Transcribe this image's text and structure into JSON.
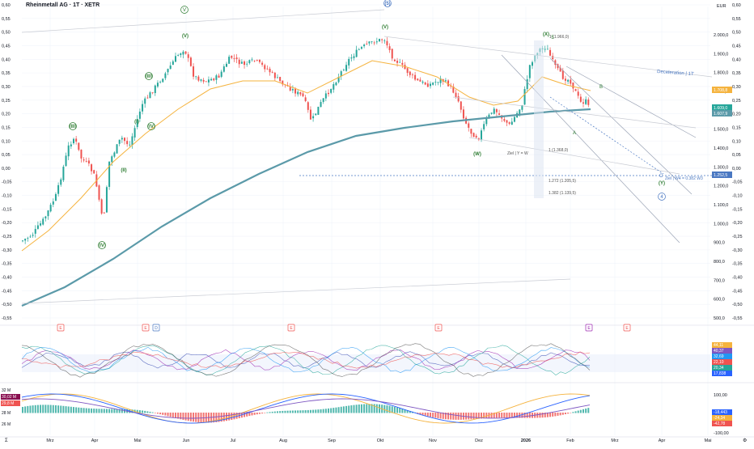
{
  "header": {
    "title": "Rheinmetall AG · 1T · XETR",
    "currency": "EUR"
  },
  "colors": {
    "up": "#26a69a",
    "down": "#ef5350",
    "ma_slow": "#5b9aa9",
    "ma_fast": "#f5b33e",
    "wave": "#2e7d32",
    "blue": "#4a78c2",
    "grid": "#f0f3fa",
    "text": "#131722"
  },
  "chart_data": {
    "type": "candlestick",
    "x_ticks": [
      "Mrz",
      "Apr",
      "Mai",
      "Jun",
      "Jul",
      "Aug",
      "Sep",
      "Okt",
      "Nov",
      "Dez",
      "2026",
      "Feb",
      "Mrz",
      "Apr",
      "Mai"
    ],
    "left_axis_ticks": [
      "0,60",
      "0,55",
      "0,50",
      "0,45",
      "0,40",
      "0,35",
      "0,30",
      "0,25",
      "0,20",
      "0,15",
      "0,10",
      "0,05",
      "0,00",
      "-0,05",
      "-0,10",
      "-0,15",
      "-0,20",
      "-0,25",
      "-0,30",
      "-0,35",
      "-0,40",
      "-0,45",
      "-0,50",
      "-0,55"
    ],
    "right_axis_ticks": [
      "2.000,0",
      "1.900,0",
      "1.800,0",
      "1.700,0",
      "1.600,0",
      "1.500,0",
      "1.400,0",
      "1.300,0",
      "1.200,0",
      "1.100,0",
      "1.000,0",
      "900,0",
      "800,0",
      "700,0",
      "600,0",
      "500,0"
    ],
    "right_axis2_ticks": [
      "0,60",
      "0,55",
      "0,50",
      "0,45",
      "0,40",
      "0,35",
      "0,30",
      "0,25",
      "0,20",
      "0,15",
      "0,10",
      "0,05",
      "0,00",
      "-0,05",
      "-0,10",
      "-0,15",
      "-0,20",
      "-0,25",
      "-0,30",
      "-0,35",
      "-0,40",
      "-0,45",
      "-0,50",
      "-0,55"
    ],
    "price_labels": [
      {
        "text": "1.708,8",
        "color": "#f5b33e"
      },
      {
        "text": "1.609,0",
        "color": "#26a69a"
      },
      {
        "text": "1.607,9",
        "color": "#5b9aa9"
      },
      {
        "text": "1.252,5",
        "color": "#4a78c2"
      }
    ],
    "waves": [
      "(III)",
      "(IV)",
      "(V)",
      "(I)",
      "(II)",
      "(III)",
      "(IV)",
      "V",
      "(V)",
      "(5)",
      "5",
      "(X)",
      "(W)",
      "A",
      "B",
      "C",
      "(Y)",
      "4"
    ],
    "annotations": {
      "fib_top": "1 (1.966,0)",
      "fib_1": "1 (1.368,0)",
      "fib_1272": "1.272 (1.205,5)",
      "fib_1382": "1.382 (1.139,5)",
      "target_w": "Ziel | Y = W",
      "target_w4": "Ziel | W4 = 0.382 W3",
      "deceleration": "Deceleration | 1T"
    },
    "event_markers": [
      "E",
      "E",
      "D",
      "E",
      "E",
      "E",
      "E"
    ],
    "rsi_panel": {
      "labels": [
        "44,11",
        "40,37",
        "32,69",
        "22,10",
        "20,34",
        "17,838"
      ]
    },
    "macd_panel": {
      "left_ticks": [
        "32 M",
        "30,02 M",
        "29,8 M",
        "28 M",
        "26 M"
      ],
      "right_ticks": [
        "100,00",
        "0,00",
        "-100,00"
      ],
      "labels": [
        "-18,443",
        "-24,34",
        "-42,78"
      ]
    },
    "bottom_axis": {
      "left": "Σ",
      "right": "⚙"
    }
  }
}
